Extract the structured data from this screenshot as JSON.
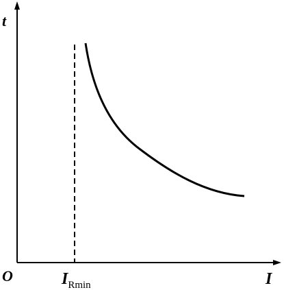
{
  "labels": {
    "y_axis": "t",
    "origin": "O",
    "x_axis": "I",
    "threshold": {
      "main": "I",
      "subscript": "Rmin"
    }
  }
}
